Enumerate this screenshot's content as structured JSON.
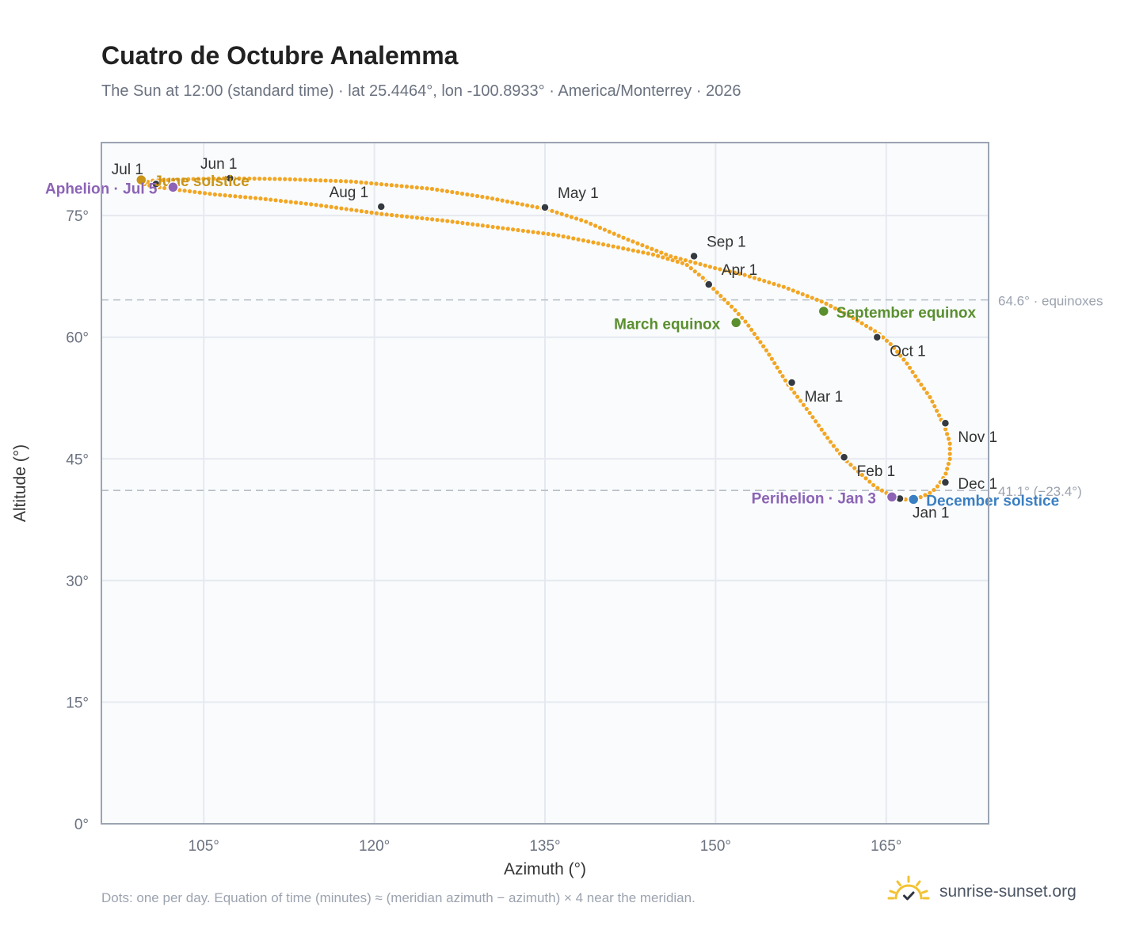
{
  "header": {
    "title": "Cuatro de Octubre Analemma",
    "subtitle": "The Sun at 12:00 (standard time) · lat 25.4464°, lon -100.8933° · America/Monterrey · 2026"
  },
  "footer": {
    "note": "Dots: one per day. Equation of time (minutes) ≈ (meridian azimuth − azimuth) × 4 near the meridian.",
    "brand": "sunrise-sunset.org",
    "brand_icon": "sun-check-icon"
  },
  "colors": {
    "curve": "#f2a623",
    "month_marker": "#343a40",
    "equinox": "#5a8f2e",
    "solstice_june": "#c9941a",
    "solstice_december": "#3a7fc1",
    "apsis": "#8c63b5",
    "reference_line": "#b8bec6",
    "grid": "#e6eaf0",
    "plot_bg": "#f9fbfd",
    "frame": "#9aa4b2"
  },
  "chart_data": {
    "type": "scatter",
    "xlabel": "Azimuth (°)",
    "ylabel": "Altitude (°)",
    "xlim": [
      96,
      174
    ],
    "ylim": [
      0,
      84
    ],
    "x_ticks": [
      {
        "value": 105,
        "label": "105°"
      },
      {
        "value": 120,
        "label": "120°"
      },
      {
        "value": 135,
        "label": "135°"
      },
      {
        "value": 150,
        "label": "150°"
      },
      {
        "value": 165,
        "label": "165°"
      }
    ],
    "y_ticks": [
      {
        "value": 0,
        "label": "0°"
      },
      {
        "value": 15,
        "label": "15°"
      },
      {
        "value": 30,
        "label": "30°"
      },
      {
        "value": 45,
        "label": "45°"
      },
      {
        "value": 60,
        "label": "60°"
      },
      {
        "value": 75,
        "label": "75°"
      }
    ],
    "grid": true,
    "reference_lines": [
      {
        "y": 64.6,
        "label": "64.6° · equinoxes"
      },
      {
        "y": 41.1,
        "label": "41.1° (−23.4°)"
      }
    ],
    "path": [
      [
        166.7,
        40.0
      ],
      [
        167.9,
        40.2
      ],
      [
        169.0,
        40.9
      ],
      [
        169.5,
        41.6
      ],
      [
        170.2,
        43.0
      ],
      [
        170.6,
        45.0
      ],
      [
        170.6,
        47.0
      ],
      [
        170.2,
        48.7
      ],
      [
        169.6,
        50.5
      ],
      [
        168.9,
        52.5
      ],
      [
        167.9,
        54.5
      ],
      [
        166.8,
        56.8
      ],
      [
        165.5,
        59.0
      ],
      [
        164.3,
        60.5
      ],
      [
        162.3,
        62.2
      ],
      [
        161.0,
        63.2
      ],
      [
        159.5,
        64.3
      ],
      [
        156.0,
        66.2
      ],
      [
        152.5,
        67.7
      ],
      [
        150.0,
        68.5
      ],
      [
        146.0,
        70.0
      ],
      [
        142.0,
        72.2
      ],
      [
        138.5,
        74.3
      ],
      [
        135.1,
        75.8
      ],
      [
        130.0,
        77.2
      ],
      [
        125.0,
        78.3
      ],
      [
        118.0,
        79.2
      ],
      [
        112.0,
        79.5
      ],
      [
        107.3,
        79.6
      ],
      [
        104.0,
        79.5
      ],
      [
        100.5,
        79.3
      ],
      [
        99.5,
        79.0
      ],
      [
        100.5,
        78.6
      ],
      [
        102.0,
        78.3
      ],
      [
        106.0,
        77.6
      ],
      [
        110.0,
        77.1
      ],
      [
        115.0,
        76.3
      ],
      [
        120.6,
        75.2
      ],
      [
        126.0,
        74.4
      ],
      [
        131.0,
        73.5
      ],
      [
        136.0,
        72.6
      ],
      [
        141.0,
        71.2
      ],
      [
        144.5,
        70.2
      ],
      [
        147.4,
        69.0
      ],
      [
        148.9,
        67.3
      ],
      [
        150.0,
        65.7
      ],
      [
        151.6,
        63.5
      ],
      [
        152.7,
        61.8
      ],
      [
        154.5,
        58.3
      ],
      [
        156.3,
        54.3
      ],
      [
        158.3,
        50.6
      ],
      [
        160.2,
        46.9
      ],
      [
        161.3,
        45.0
      ],
      [
        162.5,
        43.5
      ],
      [
        164.0,
        41.6
      ],
      [
        165.5,
        40.4
      ],
      [
        166.7,
        40.0
      ]
    ],
    "month_markers": [
      {
        "label": "Jan 1",
        "x": 166.2,
        "y": 40.1,
        "anchor": "below-right"
      },
      {
        "label": "Feb 1",
        "x": 161.3,
        "y": 45.2,
        "anchor": "below-right"
      },
      {
        "label": "Mar 1",
        "x": 156.7,
        "y": 54.4,
        "anchor": "below-right"
      },
      {
        "label": "Apr 1",
        "x": 149.4,
        "y": 66.5,
        "anchor": "above-right"
      },
      {
        "label": "May 1",
        "x": 135.0,
        "y": 76.0,
        "anchor": "above-right"
      },
      {
        "label": "Jun 1",
        "x": 107.3,
        "y": 79.6,
        "anchor": "above"
      },
      {
        "label": "Jul 1",
        "x": 100.8,
        "y": 78.9,
        "anchor": "above-left"
      },
      {
        "label": "Aug 1",
        "x": 120.6,
        "y": 76.1,
        "anchor": "above-left"
      },
      {
        "label": "Sep 1",
        "x": 148.1,
        "y": 70.0,
        "anchor": "above-right"
      },
      {
        "label": "Oct 1",
        "x": 164.2,
        "y": 60.0,
        "anchor": "below-right"
      },
      {
        "label": "Nov 1",
        "x": 170.2,
        "y": 49.4,
        "anchor": "below-right"
      },
      {
        "label": "Dec 1",
        "x": 170.2,
        "y": 42.1,
        "anchor": "right"
      }
    ],
    "events": [
      {
        "label": "March equinox",
        "x": 151.8,
        "y": 61.8,
        "color": "#5a8f2e",
        "anchor": "left"
      },
      {
        "label": "September equinox",
        "x": 159.5,
        "y": 63.2,
        "color": "#5a8f2e",
        "anchor": "right"
      },
      {
        "label": "June solstice",
        "x": 99.5,
        "y": 79.4,
        "color": "#c9941a",
        "anchor": "right"
      },
      {
        "label": "December solstice",
        "x": 167.4,
        "y": 40.0,
        "color": "#3a7fc1",
        "anchor": "right"
      },
      {
        "label": "Aphelion · Jul 5",
        "x": 102.3,
        "y": 78.5,
        "color": "#8c63b5",
        "anchor": "left"
      },
      {
        "label": "Perihelion · Jan 3",
        "x": 165.5,
        "y": 40.3,
        "color": "#8c63b5",
        "anchor": "left"
      }
    ]
  }
}
